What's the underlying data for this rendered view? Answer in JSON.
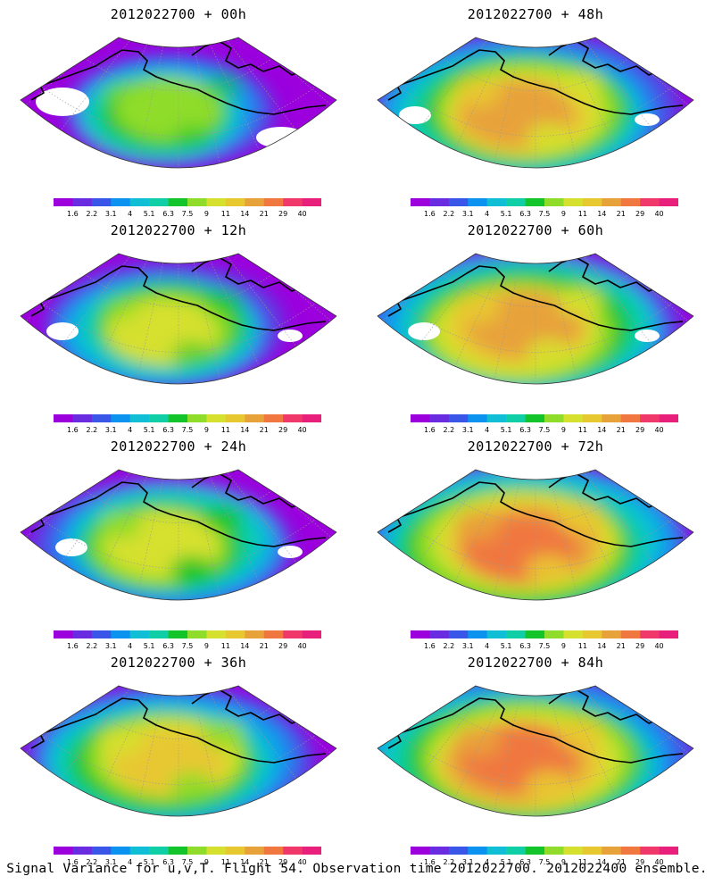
{
  "colorbar": {
    "levels": [
      "1.6",
      "2.2",
      "3.1",
      "4",
      "5.1",
      "6.3",
      "7.5",
      "9",
      "11",
      "14",
      "21",
      "29",
      "40"
    ],
    "colors": [
      "#9b00dd",
      "#6a2ce0",
      "#3a56e8",
      "#0b93ef",
      "#10bfd6",
      "#10cfa6",
      "#13c52a",
      "#8fdc2a",
      "#d6e02e",
      "#e8c830",
      "#e8a23a",
      "#f07840",
      "#f0386a",
      "#e8207c"
    ]
  },
  "panels": [
    {
      "title": "2012022700 + 00h",
      "intensity": 0.35
    },
    {
      "title": "2012022700 + 48h",
      "intensity": 0.72
    },
    {
      "title": "2012022700 + 12h",
      "intensity": 0.45
    },
    {
      "title": "2012022700 + 60h",
      "intensity": 0.78
    },
    {
      "title": "2012022700 + 24h",
      "intensity": 0.55
    },
    {
      "title": "2012022700 + 72h",
      "intensity": 0.82
    },
    {
      "title": "2012022700 + 36h",
      "intensity": 0.65
    },
    {
      "title": "2012022700 + 84h",
      "intensity": 0.86
    }
  ],
  "footer": "Signal Variance for u,v,T. Flight 54. Observation time 2012022700. 2012022400 ensemble."
}
